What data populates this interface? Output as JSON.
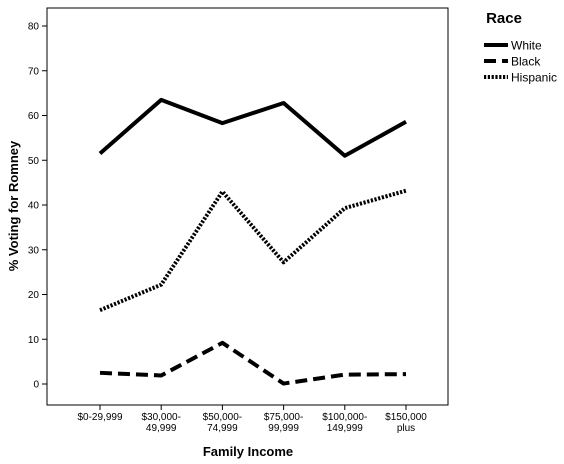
{
  "chart_data": {
    "type": "line",
    "xlabel": "Family Income",
    "ylabel": "% Voting for Romney",
    "ylim": [
      -5,
      85
    ],
    "yticks": [
      0,
      10,
      20,
      30,
      40,
      50,
      60,
      70,
      80
    ],
    "categories": [
      [
        "$0-29,999"
      ],
      [
        "$30,000-",
        "49,999"
      ],
      [
        "$50,000-",
        "74,999"
      ],
      [
        "$75,000-",
        "99,999"
      ],
      [
        "$100,000-",
        "149,999"
      ],
      [
        "$150,000",
        "plus"
      ]
    ],
    "legend_title": "Race",
    "legend_position": "right",
    "grid": false,
    "series": [
      {
        "name": "White",
        "style": "solid",
        "color": "#000000",
        "values": [
          51.5,
          63.5,
          58.3,
          62.8,
          51.0,
          58.6
        ]
      },
      {
        "name": "Black",
        "style": "dashed",
        "color": "#000000",
        "values": [
          2.5,
          1.9,
          9.2,
          0.1,
          2.1,
          2.2
        ]
      },
      {
        "name": "Hispanic",
        "style": "dotted",
        "color": "#000000",
        "values": [
          16.5,
          22.2,
          43.0,
          27.2,
          39.3,
          43.2
        ]
      }
    ]
  }
}
